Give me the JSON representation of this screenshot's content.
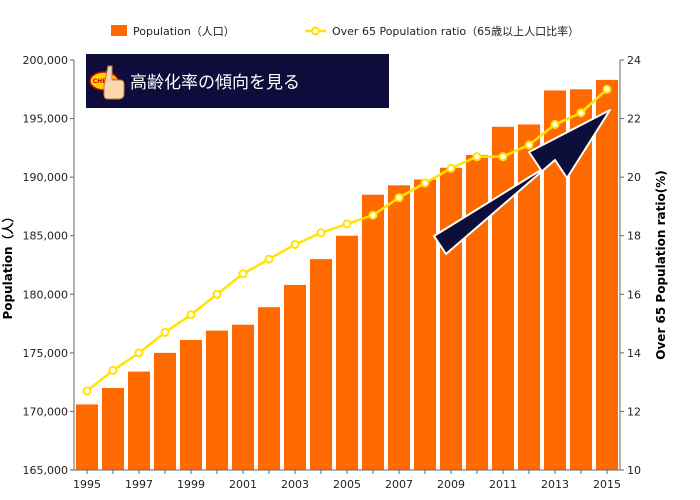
{
  "chart_data": {
    "type": "bar+line",
    "categories": [
      "1995",
      "1996",
      "1997",
      "1998",
      "1999",
      "2000",
      "2001",
      "2002",
      "2003",
      "2004",
      "2005",
      "2006",
      "2007",
      "2008",
      "2009",
      "2010",
      "2011",
      "2012",
      "2013",
      "2014",
      "2015"
    ],
    "x_tick_labels": [
      "1995",
      "1997",
      "1999",
      "2001",
      "2003",
      "2005",
      "2007",
      "2009",
      "2011",
      "2013",
      "2015"
    ],
    "series": [
      {
        "name": "Population（人口）",
        "type": "bar",
        "axis": "left",
        "color": "#ff6a00",
        "values": [
          170600,
          172000,
          173400,
          175000,
          176100,
          176900,
          177400,
          178900,
          180800,
          183000,
          185000,
          188500,
          189300,
          189800,
          190800,
          191900,
          194300,
          194500,
          197400,
          197500,
          198300
        ]
      },
      {
        "name": "Over 65 Population ratio（65歳以上人口比率）",
        "type": "line",
        "axis": "right",
        "color": "#ffe400",
        "values": [
          12.7,
          13.4,
          14.0,
          14.7,
          15.3,
          16.0,
          16.7,
          17.2,
          17.7,
          18.1,
          18.4,
          18.7,
          19.3,
          19.8,
          20.3,
          20.7,
          20.7,
          21.1,
          21.8,
          22.2,
          23.0
        ]
      }
    ],
    "ylabel_left": "Population（人）",
    "ylabel_right": "Over 65 Population ratio(%)",
    "ylim_left": [
      165000,
      200000
    ],
    "yticks_left": [
      "165,000",
      "170,000",
      "175,000",
      "180,000",
      "185,000",
      "190,000",
      "195,000",
      "200,000"
    ],
    "ylim_right": [
      10,
      24
    ],
    "yticks_right": [
      "10",
      "12",
      "14",
      "16",
      "18",
      "20",
      "22",
      "24"
    ],
    "grid": false,
    "legend_position": "top"
  },
  "annotation": {
    "banner_text": "高齢化率の傾向を見る",
    "badge_text": "CHECK",
    "banner_color": "#0e0c3a",
    "arrow_color": "#0b0f3a"
  },
  "colors": {
    "axis": "#666666"
  }
}
